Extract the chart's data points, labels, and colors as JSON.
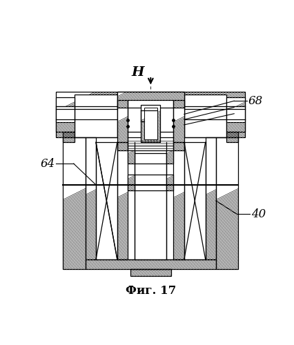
{
  "title": "Фиг. 17",
  "label_68": "68",
  "label_64": "64",
  "label_40": "40",
  "label_H": "H",
  "bg_color": "#ffffff",
  "lc": "#000000",
  "title_fontsize": 12,
  "label_fontsize": 12
}
